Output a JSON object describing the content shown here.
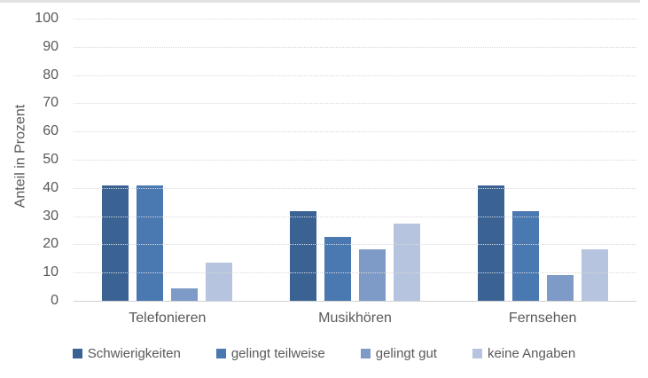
{
  "chart_data": {
    "type": "bar",
    "title": "",
    "xlabel": "",
    "ylabel": "Anteil in Prozent",
    "categories": [
      "Telefonieren",
      "Musikhören",
      "Fernsehen"
    ],
    "series": [
      {
        "name": "Schwierigkeiten",
        "color": "#3A6394",
        "values": [
          40.9,
          31.8,
          40.9
        ]
      },
      {
        "name": "gelingt teilweise",
        "color": "#4A78B0",
        "values": [
          40.9,
          22.7,
          31.8
        ]
      },
      {
        "name": "gelingt gut",
        "color": "#7E9AC6",
        "values": [
          4.5,
          18.2,
          9.1
        ]
      },
      {
        "name": "keine Angaben",
        "color": "#B6C4DF",
        "values": [
          13.6,
          27.3,
          18.2
        ]
      }
    ],
    "ylim": [
      0,
      100
    ],
    "yticks": [
      100,
      90,
      80,
      70,
      60,
      50,
      40,
      30,
      20,
      10,
      0
    ],
    "grid": "horizontal-dotted",
    "legend_position": "bottom",
    "colors": {
      "gridline": "#D9D9D9",
      "baseline": "#D2D2D2",
      "axis_text": "#595959",
      "top_border": "#E2E2E2"
    }
  }
}
